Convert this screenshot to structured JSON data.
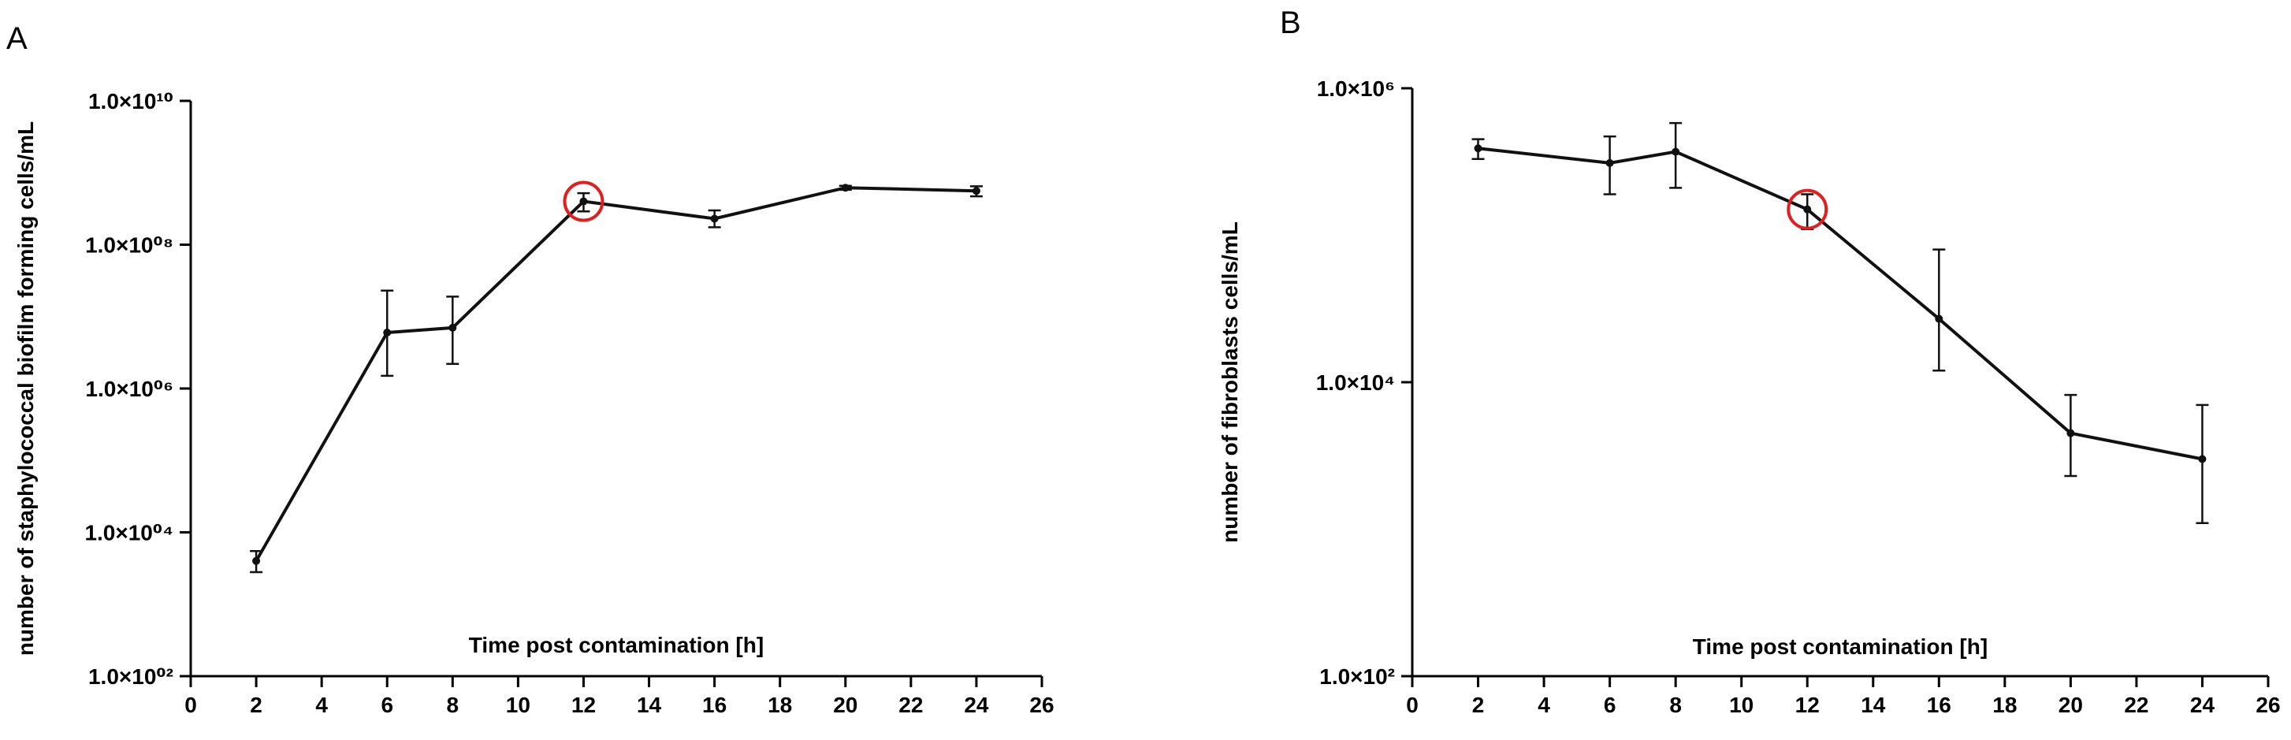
{
  "chart_data": [
    {
      "panel": "A",
      "type": "line",
      "title": "",
      "xlabel": "Time post contamination [h]",
      "ylabel": "number of staphylococcal biofilm forming cells/mL",
      "xlim": [
        0,
        26
      ],
      "xticks": [
        0,
        2,
        4,
        6,
        8,
        10,
        12,
        14,
        16,
        18,
        20,
        22,
        24,
        26
      ],
      "xtick_labels": [
        "0",
        "2",
        "4",
        "6",
        "8",
        "10",
        "12",
        "14",
        "16",
        "18",
        "20",
        "22",
        "24",
        "26"
      ],
      "yscale": "log",
      "ylim": [
        100,
        10000000000
      ],
      "yticks": [
        100,
        10000,
        1000000,
        100000000,
        10000000000
      ],
      "ytick_labels": [
        "1.0×10¹⁰",
        "1.0×10⁰⁸",
        "1.0×10⁰⁶",
        "1.0×10⁰⁴",
        "1.0×10⁰²"
      ],
      "ytick_label_values": [
        10000000000,
        100000000,
        1000000,
        10000,
        100
      ],
      "grid": false,
      "series": [
        {
          "x": [
            2,
            6,
            8,
            12,
            16,
            20,
            24
          ],
          "y": [
            4000,
            6000000,
            7000000,
            400000000,
            230000000,
            620000000,
            560000000
          ],
          "err_low": [
            2800,
            1500000,
            2200000,
            290000000,
            175000000,
            580000000,
            470000000
          ],
          "err_high": [
            5500,
            23000000,
            19000000,
            520000000,
            300000000,
            660000000,
            650000000
          ]
        }
      ],
      "highlight": {
        "x": 12,
        "y": 400000000,
        "color": "#e02020"
      }
    },
    {
      "panel": "B",
      "type": "line",
      "title": "",
      "xlabel": "Time post contamination [h]",
      "ylabel": "number of fibroblasts cells/mL",
      "xlim": [
        0,
        26
      ],
      "xticks": [
        0,
        2,
        4,
        6,
        8,
        10,
        12,
        14,
        16,
        18,
        20,
        22,
        24,
        26
      ],
      "xtick_labels": [
        "0",
        "2",
        "4",
        "6",
        "8",
        "10",
        "12",
        "14",
        "16",
        "18",
        "20",
        "22",
        "24",
        "26"
      ],
      "yscale": "log",
      "ylim": [
        100,
        1000000
      ],
      "yticks": [
        100,
        10000,
        1000000
      ],
      "ytick_labels": [
        "1.0×10⁶",
        "1.0×10⁴",
        "1.0×10²"
      ],
      "ytick_label_values": [
        1000000,
        10000,
        100
      ],
      "grid": false,
      "series": [
        {
          "x": [
            2,
            6,
            8,
            12,
            16,
            20,
            24
          ],
          "y": [
            390000,
            310000,
            370000,
            150000,
            27000,
            4500,
            3000
          ],
          "err_low": [
            330000,
            190000,
            210000,
            110000,
            12000,
            2300,
            1100
          ],
          "err_high": [
            450000,
            470000,
            580000,
            190000,
            80000,
            8200,
            7000
          ]
        }
      ],
      "highlight": {
        "x": 12,
        "y": 150000,
        "color": "#e02020"
      }
    }
  ]
}
